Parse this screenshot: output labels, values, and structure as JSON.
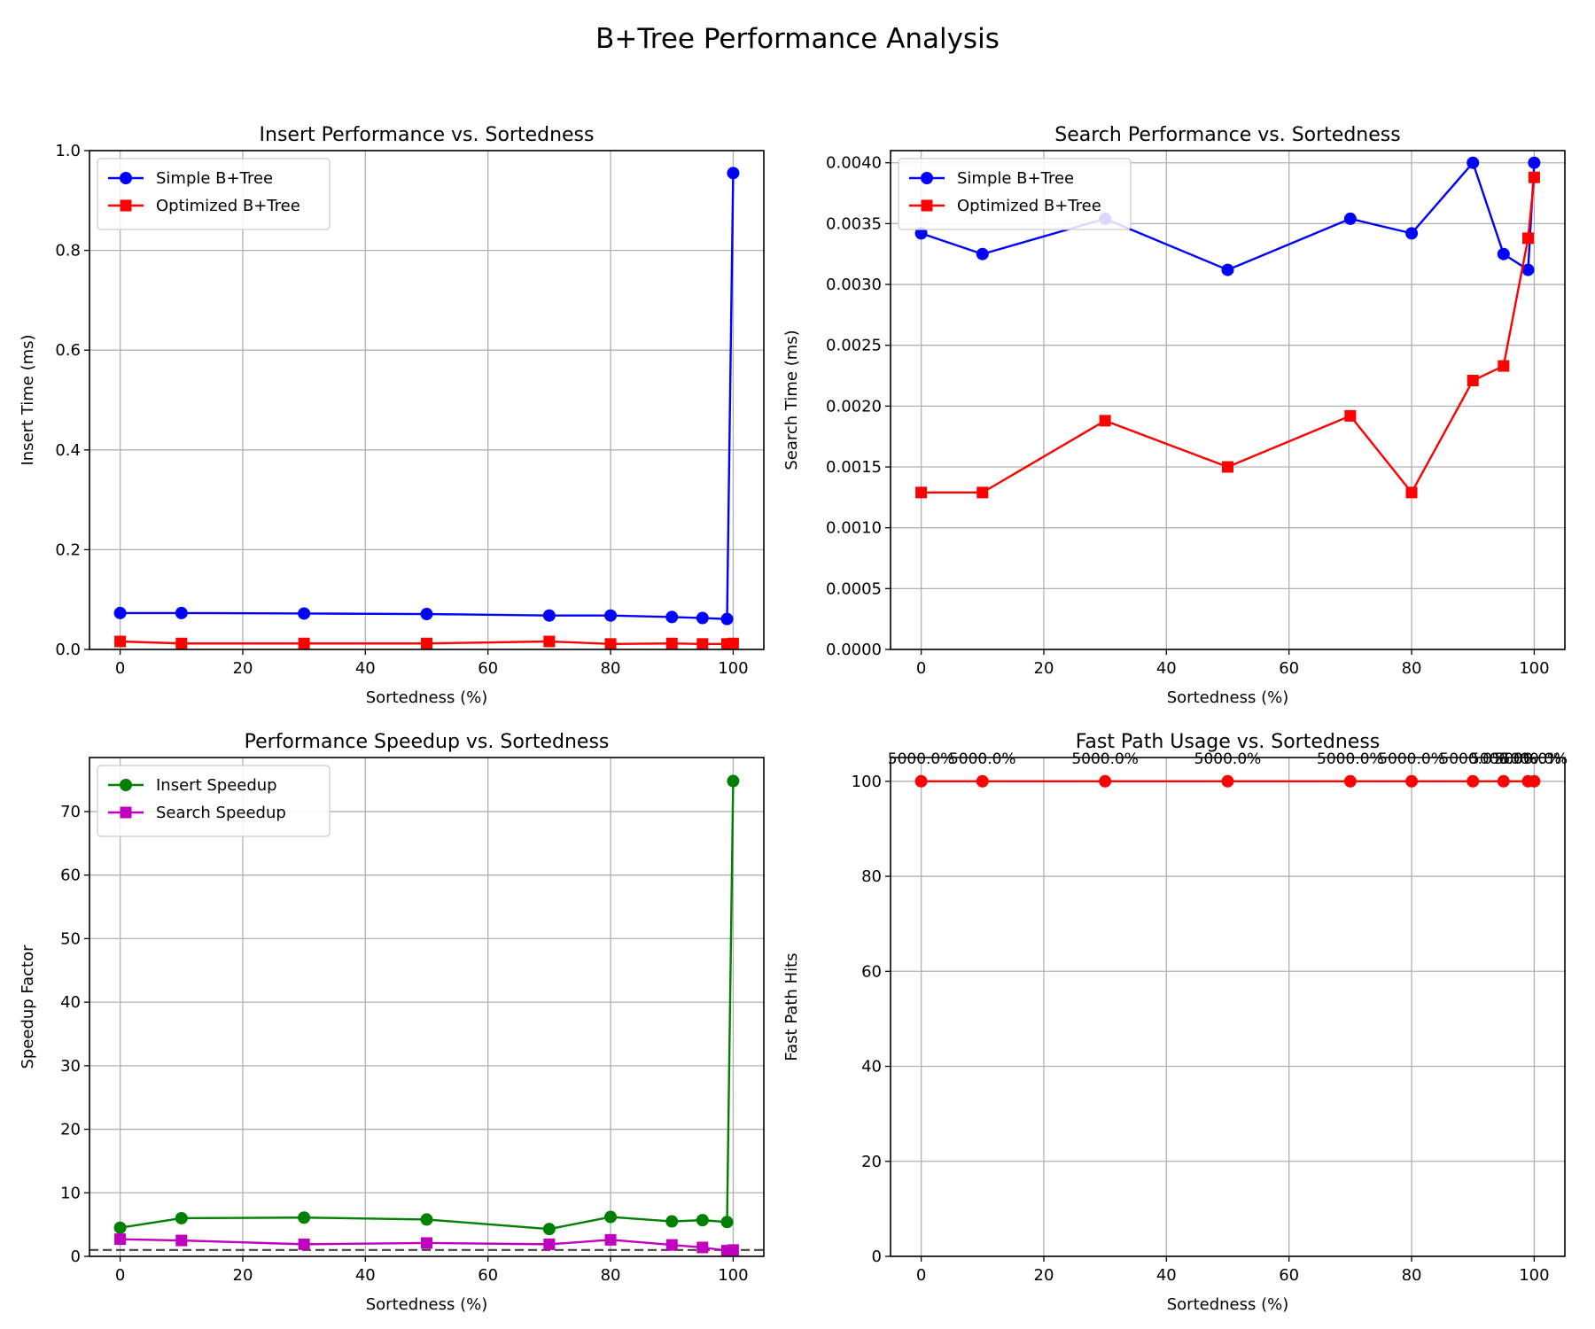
{
  "figure": {
    "title": "B+Tree Performance Analysis"
  },
  "chart_data": [
    {
      "type": "line",
      "title": "Insert Performance vs. Sortedness",
      "xlabel": "Sortedness (%)",
      "ylabel": "Insert Time (ms)",
      "xlim": [
        -5,
        105
      ],
      "ylim": [
        0,
        1.0
      ],
      "xticks": [
        0,
        20,
        40,
        60,
        80,
        100
      ],
      "xtick_labels": [
        "0",
        "20",
        "40",
        "60",
        "80",
        "100"
      ],
      "yticks": [
        0,
        0.2,
        0.4,
        0.6,
        0.8,
        1.0
      ],
      "ytick_labels": [
        "0.0",
        "0.2",
        "0.4",
        "0.6",
        "0.8",
        "1.0"
      ],
      "grid": true,
      "legend": "upper-left",
      "x": [
        0,
        10,
        30,
        50,
        70,
        80,
        90,
        95,
        99,
        100
      ],
      "series": [
        {
          "name": "Simple B+Tree",
          "color": "#0000ff",
          "marker": "circle",
          "values": [
            0.073,
            0.073,
            0.072,
            0.071,
            0.068,
            0.068,
            0.065,
            0.063,
            0.061,
            0.955
          ]
        },
        {
          "name": "Optimized B+Tree",
          "color": "#ff0000",
          "marker": "square",
          "values": [
            0.016,
            0.012,
            0.012,
            0.012,
            0.016,
            0.011,
            0.012,
            0.011,
            0.011,
            0.012
          ]
        }
      ]
    },
    {
      "type": "line",
      "title": "Search Performance vs. Sortedness",
      "xlabel": "Sortedness (%)",
      "ylabel": "Search Time (ms)",
      "xlim": [
        -5,
        105
      ],
      "ylim": [
        0,
        0.0041
      ],
      "xticks": [
        0,
        20,
        40,
        60,
        80,
        100
      ],
      "xtick_labels": [
        "0",
        "20",
        "40",
        "60",
        "80",
        "100"
      ],
      "yticks": [
        0,
        0.0005,
        0.001,
        0.0015,
        0.002,
        0.0025,
        0.003,
        0.0035,
        0.004
      ],
      "ytick_labels": [
        "0.0000",
        "0.0005",
        "0.0010",
        "0.0015",
        "0.0020",
        "0.0025",
        "0.0030",
        "0.0035",
        "0.0040"
      ],
      "grid": true,
      "legend": "upper-left",
      "x": [
        0,
        10,
        30,
        50,
        70,
        80,
        90,
        95,
        99,
        100
      ],
      "series": [
        {
          "name": "Simple B+Tree",
          "color": "#0000ff",
          "marker": "circle",
          "values": [
            0.00342,
            0.00325,
            0.00354,
            0.00312,
            0.00354,
            0.00342,
            0.004,
            0.00325,
            0.00312,
            0.004
          ]
        },
        {
          "name": "Optimized B+Tree",
          "color": "#ff0000",
          "marker": "square",
          "values": [
            0.00129,
            0.00129,
            0.00188,
            0.0015,
            0.00192,
            0.00129,
            0.00221,
            0.00233,
            0.00338,
            0.00388
          ]
        }
      ]
    },
    {
      "type": "line",
      "title": "Performance Speedup vs. Sortedness",
      "xlabel": "Sortedness (%)",
      "ylabel": "Speedup Factor",
      "xlim": [
        -5,
        105
      ],
      "ylim": [
        0,
        78.5
      ],
      "xticks": [
        0,
        20,
        40,
        60,
        80,
        100
      ],
      "xtick_labels": [
        "0",
        "20",
        "40",
        "60",
        "80",
        "100"
      ],
      "yticks": [
        0,
        10,
        20,
        30,
        40,
        50,
        60,
        70
      ],
      "ytick_labels": [
        "0",
        "10",
        "20",
        "30",
        "40",
        "50",
        "60",
        "70"
      ],
      "grid": true,
      "legend": "upper-left",
      "reference_line": {
        "y": 1,
        "style": "dashed",
        "color": "#404040"
      },
      "x": [
        0,
        10,
        30,
        50,
        70,
        80,
        90,
        95,
        99,
        100
      ],
      "series": [
        {
          "name": "Insert Speedup",
          "color": "#008000",
          "marker": "circle",
          "values": [
            4.5,
            6.0,
            6.1,
            5.8,
            4.3,
            6.2,
            5.5,
            5.7,
            5.4,
            74.8
          ]
        },
        {
          "name": "Search Speedup",
          "color": "#bf00bf",
          "marker": "square",
          "values": [
            2.7,
            2.5,
            1.9,
            2.1,
            1.9,
            2.6,
            1.8,
            1.4,
            0.9,
            1.0
          ]
        }
      ]
    },
    {
      "type": "line",
      "title": "Fast Path Usage vs. Sortedness",
      "xlabel": "Sortedness (%)",
      "ylabel": "Fast Path Hits",
      "xlim": [
        -5,
        105
      ],
      "ylim": [
        0,
        105
      ],
      "xticks": [
        0,
        20,
        40,
        60,
        80,
        100
      ],
      "xtick_labels": [
        "0",
        "20",
        "40",
        "60",
        "80",
        "100"
      ],
      "yticks": [
        0,
        20,
        40,
        60,
        80,
        100
      ],
      "ytick_labels": [
        "0",
        "20",
        "40",
        "60",
        "80",
        "100"
      ],
      "grid": true,
      "x": [
        0,
        10,
        30,
        50,
        70,
        80,
        90,
        95,
        99,
        100
      ],
      "series": [
        {
          "color": "#ff0000",
          "marker": "circle",
          "values": [
            100,
            100,
            100,
            100,
            100,
            100,
            100,
            100,
            100,
            100
          ]
        }
      ],
      "annotations": [
        "5000.0%",
        "5000.0%",
        "5000.0%",
        "5000.0%",
        "5000.0%",
        "5000.0%",
        "5000.0%",
        "5000.0%",
        "5000.0%",
        "5000.0%"
      ]
    }
  ]
}
